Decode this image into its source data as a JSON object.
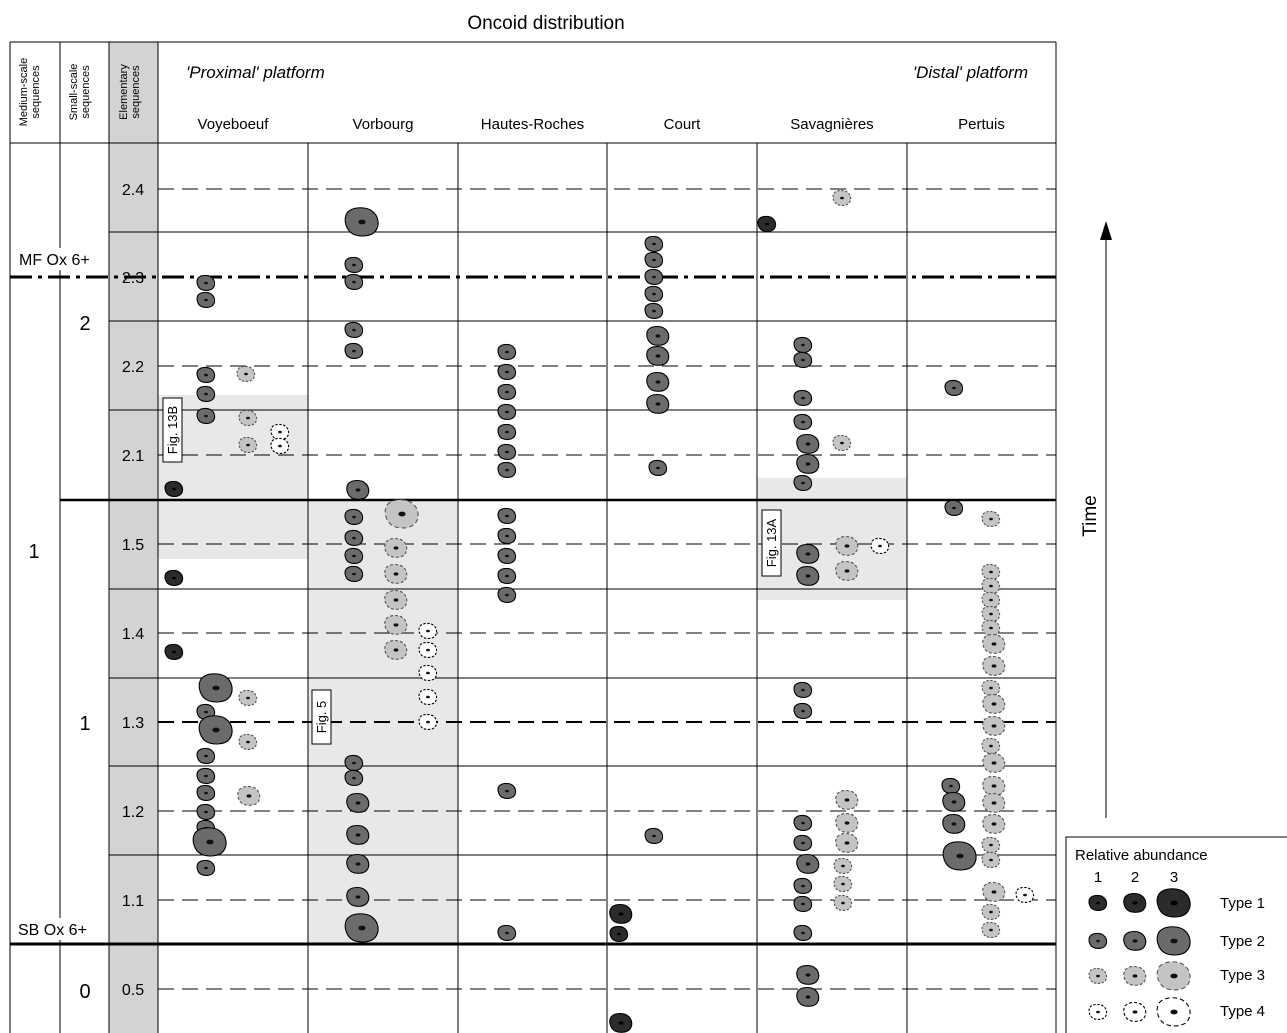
{
  "title": "Oncoid distribution",
  "header": {
    "medium_scale": "Medium-scale sequences",
    "small_scale": "Small-scale sequences",
    "elementary": "Elementary sequences",
    "proximal": "'Proximal' platform",
    "distal": "'Distal' platform"
  },
  "sections": [
    "Voyeboeuf",
    "Vorbourg",
    "Hautes-Roches",
    "Court",
    "Savagnières",
    "Pertuis"
  ],
  "medium_scale_labels": [
    "1"
  ],
  "small_scale_labels": [
    "2",
    "1",
    "0"
  ],
  "elementary_labels": [
    "2.4",
    "2.3",
    "2.2",
    "2.1",
    "1.5",
    "1.4",
    "1.3",
    "1.2",
    "1.1",
    "0.5"
  ],
  "surface_labels": {
    "mf": "MF Ox 6+",
    "sb": "SB Ox 6+"
  },
  "figure_refs": [
    "Fig. 13B",
    "Fig. 5",
    "Fig. 13A"
  ],
  "time_label": "Time",
  "legend": {
    "title": "Relative abundance",
    "abundance": [
      "1",
      "2",
      "3"
    ],
    "types": [
      "Type 1",
      "Type 2",
      "Type 3",
      "Type 4"
    ]
  },
  "colors": {
    "type1": "#2b2b2b",
    "type2": "#6b6b6b",
    "type3": "#c4c4c4",
    "type4": "#ffffff",
    "elementary_column": "#d3d3d3",
    "highlight": "#e8e8e8"
  }
}
